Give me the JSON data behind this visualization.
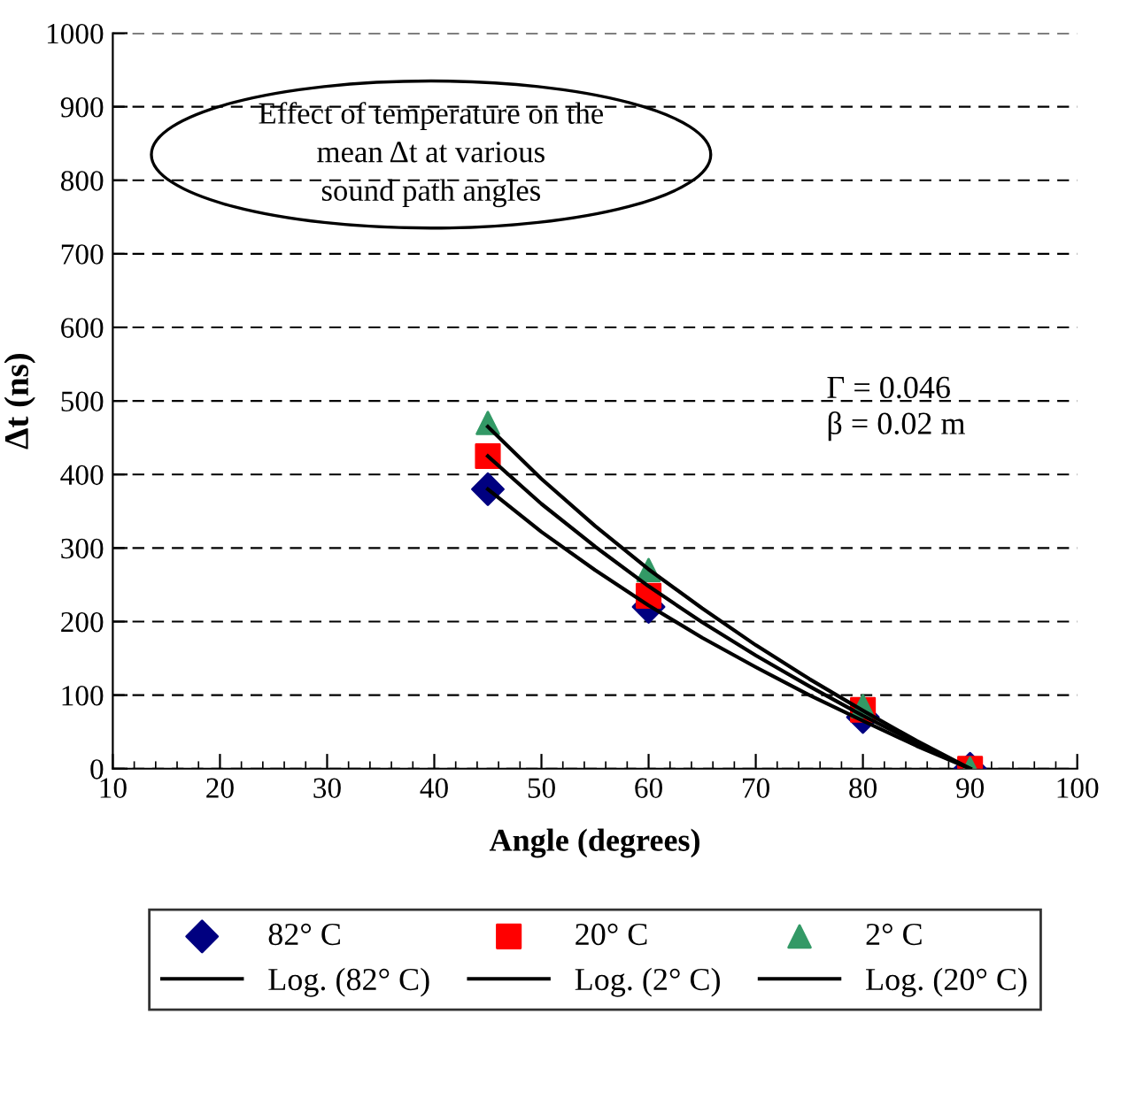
{
  "chart_data": {
    "type": "scatter",
    "xlabel": "Angle (degrees)",
    "ylabel": "Δt (ns)",
    "xlim": [
      10,
      100
    ],
    "xticks": [
      10,
      20,
      30,
      40,
      50,
      60,
      70,
      80,
      90,
      100
    ],
    "ylim": [
      0,
      1000
    ],
    "yticks": [
      0,
      100,
      200,
      300,
      400,
      500,
      600,
      700,
      800,
      900,
      1000
    ],
    "grid": "y",
    "legend": "bottom",
    "annotations": [
      "Effect of temperature on the\nmean Δt at various\nsound path angles",
      "Γ = 0.046\nβ = 0.02 m"
    ],
    "series": [
      {
        "name": "82° C",
        "marker": "diamond",
        "color": "#000080",
        "x": [
          45,
          60,
          80,
          90
        ],
        "values": [
          380,
          220,
          70,
          0
        ]
      },
      {
        "name": "20° C",
        "marker": "square",
        "color": "#ff0000",
        "x": [
          45,
          60,
          80,
          90
        ],
        "values": [
          425,
          235,
          80,
          0
        ]
      },
      {
        "name": "2° C",
        "marker": "triangle",
        "color": "#339966",
        "x": [
          45,
          60,
          80,
          90
        ],
        "values": [
          470,
          270,
          85,
          0
        ]
      },
      {
        "name": "Log. (82° C)",
        "type": "line",
        "marker": "none",
        "color": "#000000",
        "x": [
          45,
          50,
          55,
          60,
          65,
          70,
          75,
          80,
          85,
          90
        ],
        "values": [
          380,
          322,
          270,
          222,
          178,
          138,
          100,
          65,
          31,
          0
        ]
      },
      {
        "name": "Log. (2° C)",
        "type": "line",
        "marker": "none",
        "color": "#000000",
        "x": [
          45,
          50,
          55,
          60,
          65,
          70,
          75,
          80,
          85,
          90
        ],
        "values": [
          465,
          394,
          330,
          271,
          218,
          168,
          122,
          79,
          38,
          0
        ]
      },
      {
        "name": "Log. (20° C)",
        "type": "line",
        "marker": "none",
        "color": "#000000",
        "x": [
          45,
          50,
          55,
          60,
          65,
          70,
          75,
          80,
          85,
          90
        ],
        "values": [
          425,
          360,
          302,
          248,
          199,
          154,
          112,
          72,
          35,
          0
        ]
      }
    ]
  }
}
